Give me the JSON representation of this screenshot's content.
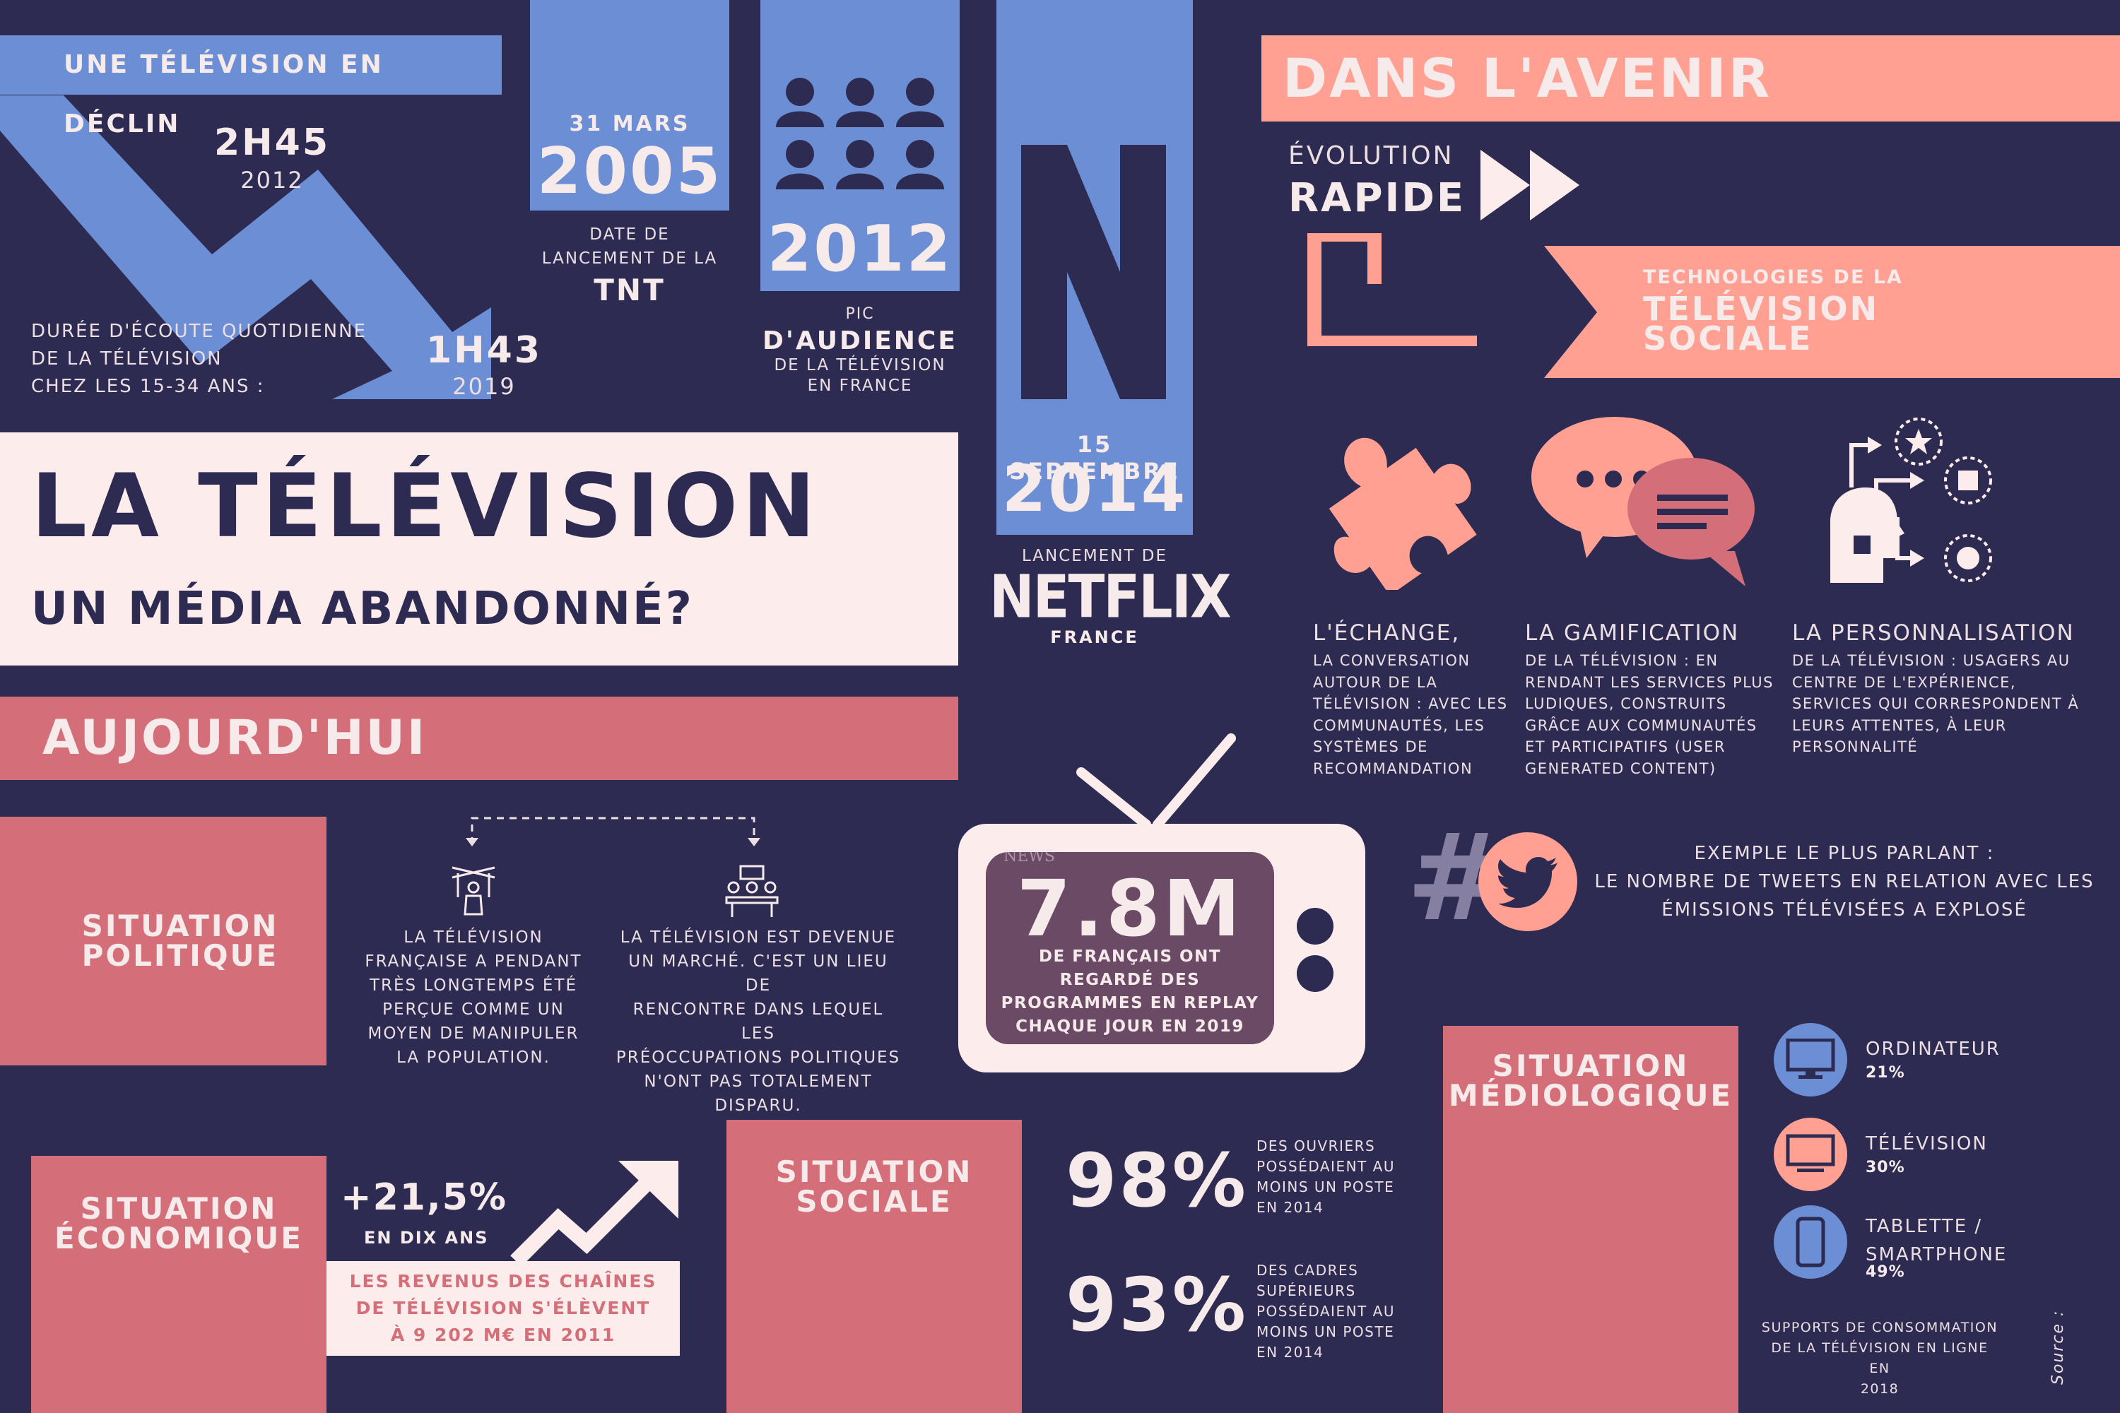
{
  "decline": {
    "header": "UNE TÉLÉVISION EN DÉCLIN",
    "value_2012": "2H45",
    "year_2012": "2012",
    "value_2019": "1H43",
    "year_2019": "2019",
    "caption_line1": "DURÉE D'ÉCOUTE QUOTIDIENNE",
    "caption_line2": "DE LA TÉLÉVISION",
    "caption_line3": "CHEZ LES 15-34 ANS :"
  },
  "tnt": {
    "date": "31 MARS",
    "year": "2005",
    "line1": "DATE DE",
    "line2": "LANCEMENT DE LA",
    "name": "TNT"
  },
  "peak": {
    "year": "2012",
    "line1": "PIC",
    "line2": "D'AUDIENCE",
    "line3": "DE LA TÉLÉVISION",
    "line4": "EN FRANCE"
  },
  "netflix": {
    "date": "15 SEPTEMBRE",
    "year": "2014",
    "line1": "LANCEMENT DE",
    "brand": "NETFLIX",
    "country": "FRANCE"
  },
  "title": {
    "main": "LA TÉLÉVISION",
    "sub": "UN MÉDIA ABANDONNÉ?"
  },
  "today": {
    "header": "AUJOURD'HUI"
  },
  "political": {
    "label_line1": "SITUATION",
    "label_line2": "POLITIQUE",
    "text_left": [
      "LA TÉLÉVISION",
      "FRANÇAISE A PENDANT",
      "TRÈS LONGTEMPS ÉTÉ",
      "PERÇUE COMME UN",
      "MOYEN DE MANIPULER",
      "LA POPULATION."
    ],
    "text_right": [
      "LA TÉLÉVISION EST DEVENUE",
      "UN MARCHÉ. C'EST UN LIEU DE",
      "RENCONTRE DANS LEQUEL LES",
      "PRÉOCCUPATIONS POLITIQUES",
      "N'ONT PAS TOTALEMENT",
      "DISPARU."
    ]
  },
  "replay": {
    "value": "7.8M",
    "line1": "DE FRANÇAIS ONT",
    "line2": "REGARDÉ DES",
    "line3": "PROGRAMMES EN REPLAY",
    "line4": "CHAQUE JOUR EN 2019",
    "screen_label": "NEWS"
  },
  "economic": {
    "label_line1": "SITUATION",
    "label_line2": "ÉCONOMIQUE",
    "growth": "+21,5%",
    "growth_sub": "EN DIX ANS",
    "box_line1": "LES REVENUS DES CHAÎNES",
    "box_line2": "DE TÉLÉVISION S'ÉLÈVENT",
    "box_line3": "À 9 202 M€ EN 2011"
  },
  "social": {
    "label_line1": "SITUATION",
    "label_line2": "SOCIALE",
    "stat1": "98%",
    "stat1_text": [
      "DES OUVRIERS",
      "POSSÉDAIENT AU",
      "MOINS UN POSTE",
      "EN 2014"
    ],
    "stat2": "93%",
    "stat2_text": [
      "DES CADRES",
      "SUPÉRIEURS",
      "POSSÉDAIENT AU",
      "MOINS UN POSTE",
      "EN 2014"
    ]
  },
  "future": {
    "header": "DANS L'AVENIR",
    "evo_line1": "ÉVOLUTION",
    "evo_line2": "RAPIDE",
    "tech_line1": "TECHNOLOGIES DE LA",
    "tech_line2": "TÉLÉVISION",
    "tech_line3": "SOCIALE",
    "exchange_title": "L'ÉCHANGE,",
    "exchange_text": [
      "LA CONVERSATION",
      "AUTOUR DE LA",
      "TÉLÉVISION : AVEC LES",
      "COMMUNAUTÉS, LES",
      "SYSTÈMES DE",
      "RECOMMANDATION"
    ],
    "gamif_title": "LA GAMIFICATION",
    "gamif_text": [
      "DE LA TÉLÉVISION : EN",
      "RENDANT LES SERVICES PLUS",
      "LUDIQUES, CONSTRUITS",
      "GRÂCE AUX COMMUNAUTÉS",
      "ET PARTICIPATIFS (USER",
      "GENERATED CONTENT)"
    ],
    "perso_title": "LA PERSONNALISATION",
    "perso_text": [
      "DE LA TÉLÉVISION : USAGERS AU",
      "CENTRE DE L'EXPÉRIENCE,",
      "SERVICES QUI CORRESPONDENT À",
      "LEURS ATTENTES, À LEUR",
      "PERSONNALITÉ"
    ],
    "tweet_line1": "EXEMPLE LE PLUS PARLANT :",
    "tweet_line2": "LE NOMBRE DE TWEETS EN RELATION AVEC LES",
    "tweet_line3": "ÉMISSIONS TÉLÉVISÉES A EXPLOSÉ"
  },
  "medio": {
    "label_line1": "SITUATION",
    "label_line2": "MÉDIOLOGIQUE",
    "items": [
      {
        "name": "ORDINATEUR",
        "pct": "21%",
        "icon": "computer-icon"
      },
      {
        "name": "TÉLÉVISION",
        "pct": "30%",
        "icon": "tv-icon"
      },
      {
        "name_line1": "TABLETTE /",
        "name_line2": "SMARTPHONE",
        "pct": "49%",
        "icon": "smartphone-icon"
      }
    ],
    "caption_line1": "SUPPORTS DE CONSOMMATION",
    "caption_line2": "DE LA TÉLÉVISION EN LIGNE EN",
    "caption_line3": "2018"
  },
  "source": "Source :",
  "colors": {
    "background": "#2d2b52",
    "blue": "#6b8ed4",
    "salmon": "#ffa093",
    "rose": "#d46f7a",
    "cream": "#fcedec"
  }
}
